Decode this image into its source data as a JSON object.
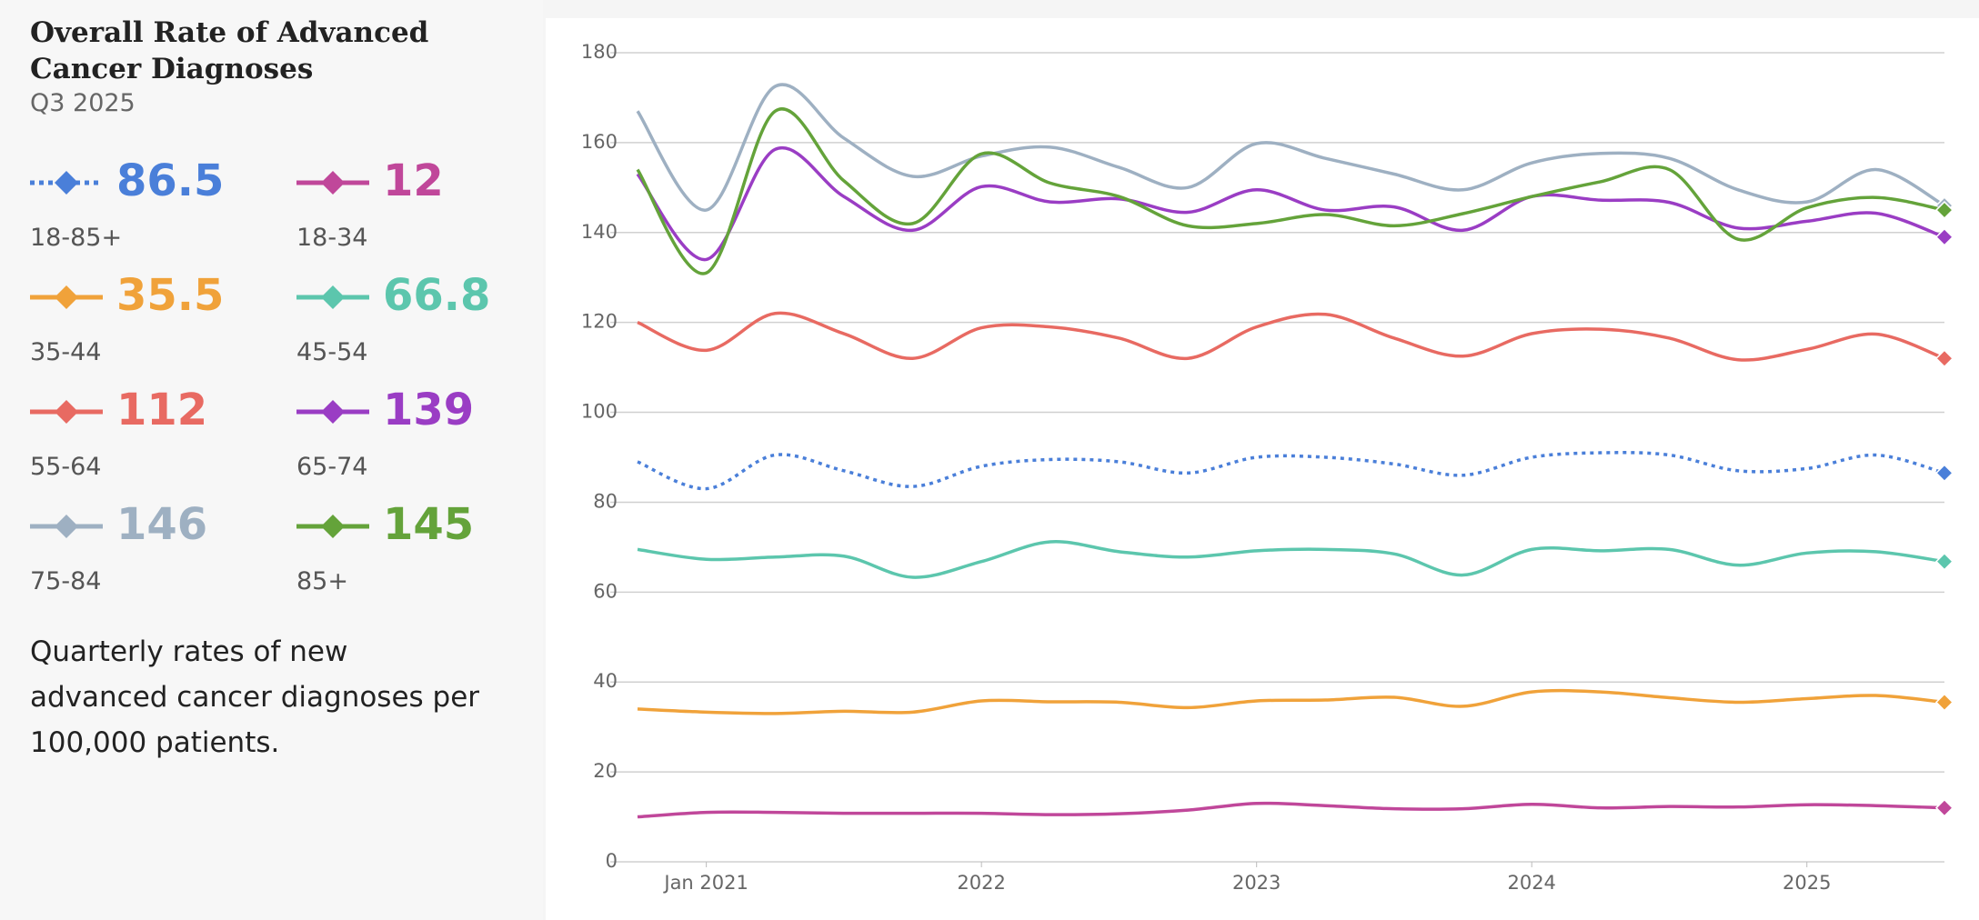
{
  "chart_data": {
    "type": "line",
    "title": "Overall Rate of Advanced Cancer Diagnoses",
    "subtitle": "Q3 2025",
    "description": "Quarterly rates of new advanced cancer diagnoses per 100,000 patients.",
    "x": [
      "2020-10",
      "2021-01",
      "2021-04",
      "2021-07",
      "2021-10",
      "2022-01",
      "2022-04",
      "2022-07",
      "2022-10",
      "2023-01",
      "2023-04",
      "2023-07",
      "2023-10",
      "2024-01",
      "2024-04",
      "2024-07",
      "2024-10",
      "2025-01",
      "2025-04",
      "2025-07"
    ],
    "xlim": [
      "2020-10",
      "2025-07"
    ],
    "xticks": [
      {
        "value": "2021-01",
        "label": "Jan 2021"
      },
      {
        "value": "2022-01",
        "label": "2022"
      },
      {
        "value": "2023-01",
        "label": "2023"
      },
      {
        "value": "2024-01",
        "label": "2024"
      },
      {
        "value": "2025-01",
        "label": "2025"
      }
    ],
    "ylim": [
      0,
      180
    ],
    "yticks": [
      0,
      20,
      40,
      60,
      80,
      100,
      120,
      140,
      160,
      180
    ],
    "grid": true,
    "series": [
      {
        "name": "18-85+",
        "color": "#4a7fd9",
        "line_style": "dotted",
        "values": [
          89,
          83,
          90.5,
          87,
          83.5,
          88,
          89.5,
          89,
          86.5,
          90,
          90,
          88.5,
          86,
          90,
          91,
          90.5,
          87,
          87.5,
          90.5,
          86.5
        ]
      },
      {
        "name": "18-34",
        "color": "#c0479a",
        "values": [
          10,
          11,
          11,
          10.8,
          10.8,
          10.8,
          10.5,
          10.7,
          11.5,
          13,
          12.5,
          11.8,
          11.8,
          12.8,
          12,
          12.3,
          12.2,
          12.7,
          12.5,
          12
        ]
      },
      {
        "name": "35-44",
        "color": "#f0a23a",
        "values": [
          34,
          33.3,
          33,
          33.5,
          33.3,
          35.8,
          35.6,
          35.5,
          34.3,
          35.8,
          36,
          36.6,
          34.6,
          37.8,
          37.8,
          36.5,
          35.5,
          36.3,
          37,
          35.5
        ]
      },
      {
        "name": "45-54",
        "color": "#5cc6ad",
        "values": [
          69.5,
          67.3,
          67.8,
          68,
          63.3,
          66.8,
          71.2,
          69,
          67.8,
          69.2,
          69.5,
          68.5,
          63.8,
          69.5,
          69.2,
          69.5,
          66,
          68.7,
          69,
          66.8
        ]
      },
      {
        "name": "55-64",
        "color": "#e86a62",
        "values": [
          120,
          113.8,
          122,
          117.5,
          112,
          118.8,
          119,
          116.5,
          112,
          119,
          121.8,
          116.5,
          112.5,
          117.5,
          118.5,
          116.5,
          111.7,
          114,
          117.4,
          112
        ]
      },
      {
        "name": "65-74",
        "color": "#9a3dc4",
        "values": [
          153,
          134,
          158.5,
          148,
          140.5,
          150.2,
          146.8,
          147.5,
          144.5,
          149.5,
          145,
          145.7,
          140.5,
          148,
          147.2,
          146.7,
          141,
          142.5,
          144.3,
          139
        ]
      },
      {
        "name": "75-84",
        "color": "#9eb0c2",
        "values": [
          167,
          145,
          172.5,
          161,
          152.5,
          157,
          159,
          154.5,
          150,
          159.8,
          156.5,
          153,
          149.5,
          155.5,
          157.6,
          156.5,
          149.5,
          146.8,
          154,
          146
        ]
      },
      {
        "name": "85+",
        "color": "#64a33a",
        "values": [
          154,
          131,
          167,
          151.5,
          142,
          157.5,
          151,
          148,
          141.5,
          142,
          144,
          141.5,
          144.2,
          148,
          151.3,
          154,
          138.5,
          145.5,
          147.8,
          145
        ]
      }
    ]
  }
}
